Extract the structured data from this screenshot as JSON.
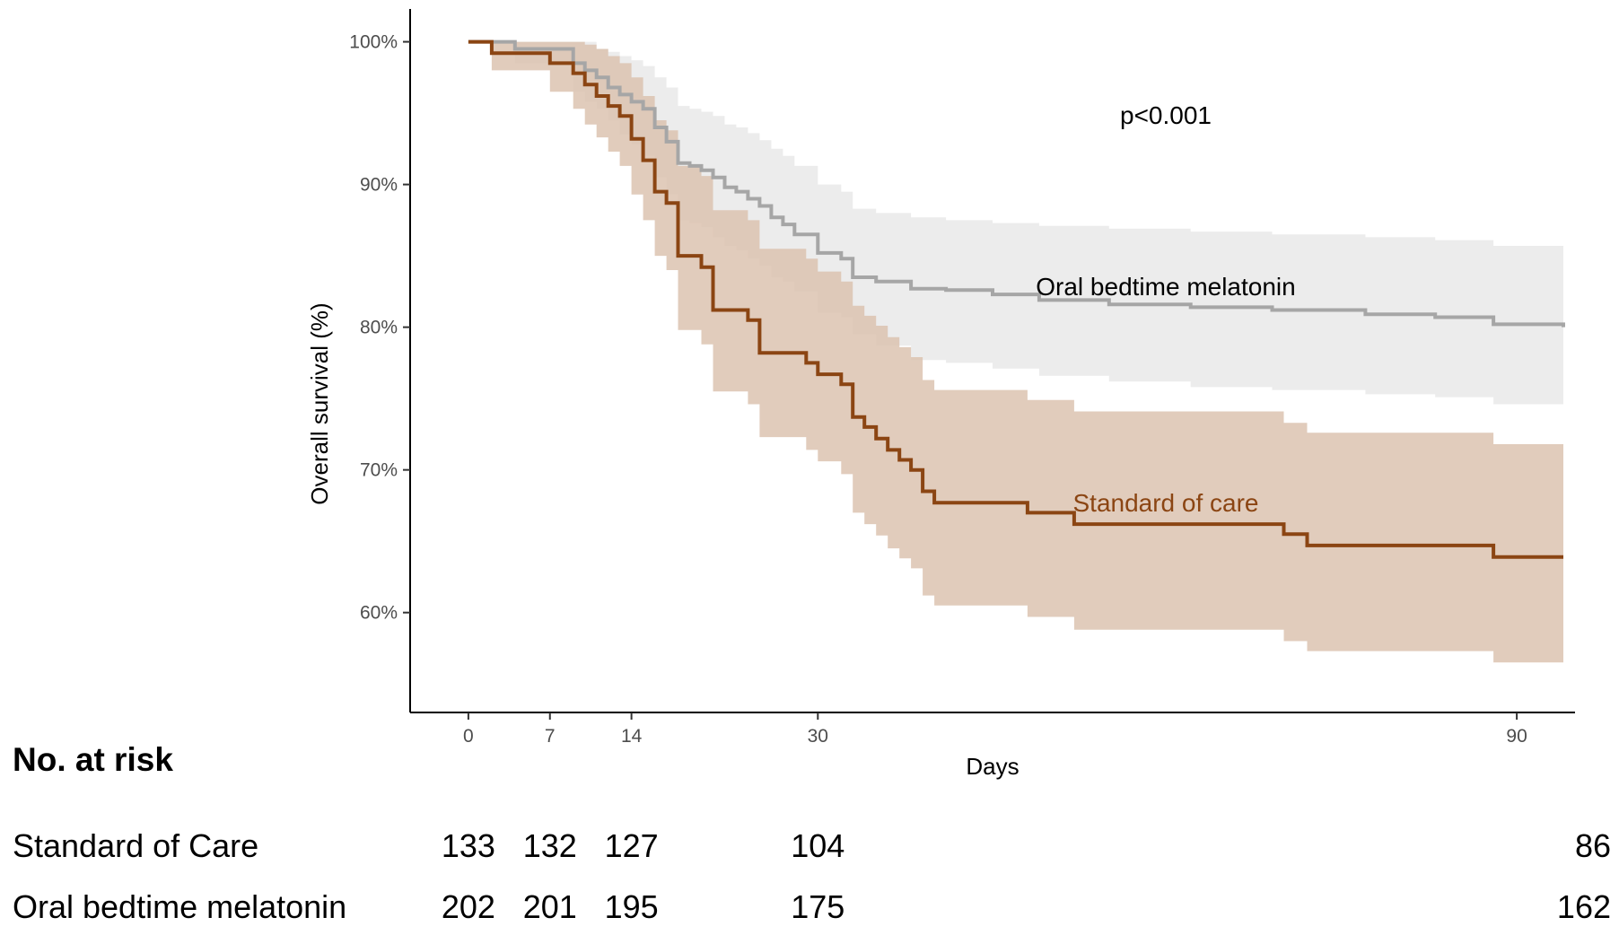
{
  "chart_data": {
    "type": "line",
    "subtype": "kaplan-meier step curves with confidence bands",
    "xlabel": "Days",
    "ylabel": "Overall survival (%)",
    "xlim": [
      -5,
      95
    ],
    "ylim": [
      53,
      102.3
    ],
    "x_ticks": [
      0,
      7,
      14,
      30,
      90
    ],
    "y_ticks": [
      60,
      70,
      80,
      90,
      100
    ],
    "y_tick_labels": [
      "60%",
      "70%",
      "80%",
      "90%",
      "100%"
    ],
    "grid": false,
    "annotation": "p<0.001",
    "series": [
      {
        "name": "Oral bedtime melatonin",
        "color": "#a6a6a6",
        "band_color": "#ececec",
        "x": [
          0,
          4,
          9,
          10,
          11,
          12,
          13,
          14,
          15,
          16,
          17,
          18,
          19,
          20,
          21,
          22,
          23,
          24,
          25,
          26,
          27,
          28,
          30,
          32,
          33,
          35,
          38,
          41,
          45,
          49,
          55,
          62,
          69,
          77,
          83,
          88,
          94
        ],
        "y": [
          100,
          99.5,
          98.5,
          98,
          97.5,
          96.8,
          96.3,
          95.8,
          95.3,
          94,
          93,
          91.5,
          91.3,
          91,
          90.5,
          89.8,
          89.5,
          89,
          88.5,
          87.7,
          87.2,
          86.5,
          85.2,
          84.8,
          83.5,
          83.2,
          82.7,
          82.6,
          82.3,
          81.9,
          81.6,
          81.4,
          81.2,
          80.9,
          80.7,
          80.2,
          80.0
        ],
        "lower": [
          100,
          98.5,
          96.5,
          95.8,
          95.3,
          94.5,
          93.5,
          92.8,
          92,
          90.5,
          89.3,
          87.5,
          87.3,
          87,
          86.3,
          85.7,
          85.4,
          84.8,
          84.3,
          83.5,
          83.2,
          82.5,
          81,
          80.7,
          79.5,
          78.7,
          77.7,
          77.5,
          77.1,
          76.6,
          76.2,
          75.8,
          75.6,
          75.3,
          75.1,
          74.6,
          74.6
        ],
        "upper": [
          100,
          100,
          100,
          100,
          99.5,
          99.3,
          99,
          98.7,
          98.3,
          97.5,
          96.8,
          95.5,
          95.3,
          95.1,
          94.8,
          94.2,
          94,
          93.6,
          93.1,
          92.5,
          92,
          91.3,
          90,
          89.5,
          88.3,
          88,
          87.7,
          87.5,
          87.3,
          87.1,
          86.9,
          86.7,
          86.5,
          86.3,
          86.1,
          85.7,
          85.7
        ]
      },
      {
        "name": "Standard of care",
        "color": "#8b4513",
        "band_color": "#dcc3b0",
        "x": [
          0,
          2,
          4,
          7,
          9,
          10,
          11,
          12,
          13,
          14,
          15,
          16,
          17,
          18,
          19,
          20,
          21,
          22,
          23,
          24,
          25,
          26,
          27,
          28,
          29,
          30,
          31,
          32,
          33,
          34,
          35,
          36,
          37,
          38,
          39,
          40,
          41,
          42,
          44,
          48,
          52,
          56,
          62,
          70,
          72,
          88,
          94
        ],
        "y": [
          100,
          99.2,
          99.2,
          98.5,
          97.8,
          97,
          96.2,
          95.5,
          94.8,
          93.2,
          91.7,
          89.5,
          88.7,
          85,
          85,
          84.2,
          81.2,
          81.2,
          81.2,
          80.5,
          78.2,
          78.2,
          78.2,
          78.2,
          77.5,
          76.7,
          76.7,
          76,
          73.7,
          73,
          72.2,
          71.4,
          70.7,
          70,
          68.5,
          67.7,
          67.7,
          67.7,
          67.7,
          67,
          66.2,
          66.2,
          66.2,
          65.5,
          64.7,
          63.9,
          63.9
        ],
        "lower": [
          100,
          98,
          98,
          96.5,
          95.3,
          94.2,
          93.3,
          92.3,
          91.3,
          89.3,
          87.5,
          85,
          84,
          79.8,
          79.8,
          78.8,
          75.5,
          75.5,
          75.5,
          74.6,
          72.3,
          72.3,
          72.3,
          72.3,
          71.4,
          70.6,
          70.6,
          69.7,
          67,
          66.2,
          65.4,
          64.5,
          63.8,
          63.1,
          61.2,
          60.5,
          60.5,
          60.5,
          60.5,
          59.7,
          58.8,
          58.8,
          58.8,
          58,
          57.3,
          56.5,
          56.5
        ],
        "upper": [
          100,
          100,
          100,
          100,
          100,
          99.8,
          99.5,
          99,
          98.5,
          97.5,
          96.2,
          94.5,
          93.8,
          91.3,
          91.3,
          90.6,
          88.2,
          88.2,
          88.2,
          87.5,
          85.5,
          85.5,
          85.5,
          85.5,
          84.8,
          83.9,
          83.9,
          83.2,
          81.5,
          80.8,
          80.1,
          79.3,
          78.6,
          77.9,
          76.3,
          75.6,
          75.6,
          75.6,
          75.6,
          74.9,
          74.1,
          74.1,
          74.1,
          73.3,
          72.6,
          71.8,
          71.8
        ]
      }
    ]
  },
  "curve_labels": {
    "melatonin": "Oral bedtime melatonin",
    "standard": "Standard of care"
  },
  "risk_table": {
    "title": "No. at risk",
    "times": [
      0,
      7,
      14,
      30,
      90
    ],
    "rows": [
      {
        "label": "Standard of Care",
        "counts": [
          "133",
          "132",
          "127",
          "104",
          "86"
        ]
      },
      {
        "label": "Oral bedtime melatonin",
        "counts": [
          "202",
          "201",
          "195",
          "175",
          "162"
        ]
      }
    ]
  }
}
